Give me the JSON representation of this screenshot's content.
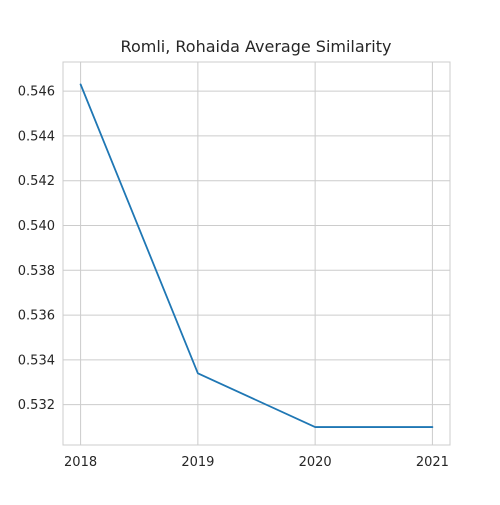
{
  "chart_data": {
    "type": "line",
    "title": "Romli, Rohaida Average Similarity",
    "xlabel": "",
    "ylabel": "",
    "x": [
      "2018",
      "2019",
      "2020",
      "2021"
    ],
    "series": [
      {
        "values": [
          0.5463,
          0.5334,
          0.531,
          0.531
        ],
        "color": "#1f77b4"
      }
    ],
    "xlim": [
      2017.85,
      2021.15
    ],
    "ylim": [
      0.5302,
      0.5473
    ],
    "yticks": [
      "0.532",
      "0.534",
      "0.536",
      "0.538",
      "0.540",
      "0.542",
      "0.544",
      "0.546"
    ],
    "grid": true,
    "legend": "none"
  }
}
